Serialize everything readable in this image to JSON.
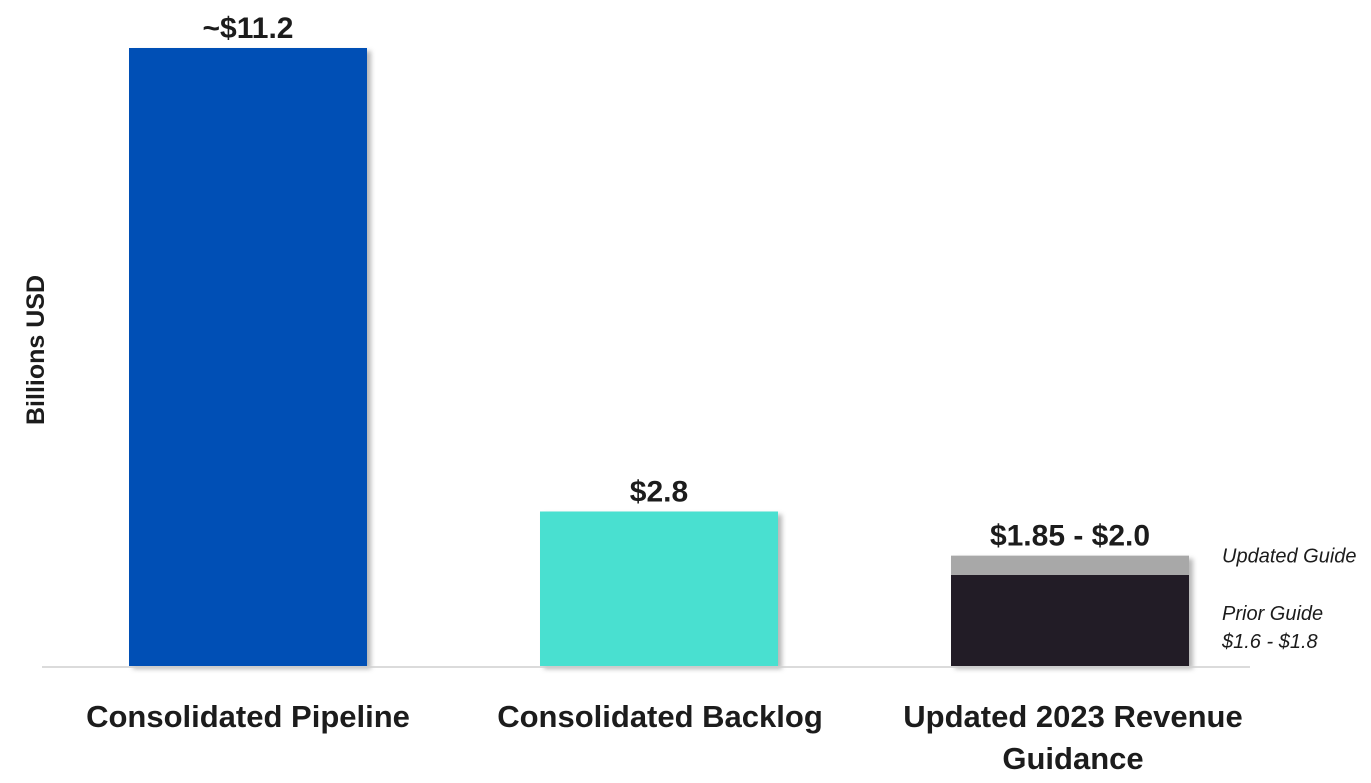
{
  "chart_data": {
    "type": "bar",
    "ylabel": "Billions USD",
    "ylim": [
      0,
      11.2
    ],
    "grid": false,
    "categories": [
      [
        "Consolidated Pipeline"
      ],
      [
        "Consolidated Backlog"
      ],
      [
        "Updated 2023 Revenue",
        "Guidance"
      ]
    ],
    "bars": [
      {
        "category_index": 0,
        "segments": [
          {
            "from": 0,
            "to": 11.2,
            "color": "#0050b5"
          }
        ],
        "label": "~$11.2"
      },
      {
        "category_index": 1,
        "segments": [
          {
            "from": 0,
            "to": 2.8,
            "color": "#48e0d0"
          }
        ],
        "label": "$2.8"
      },
      {
        "category_index": 2,
        "segments": [
          {
            "from": 0,
            "to": 1.65,
            "color": "#201f26"
          },
          {
            "from": 1.65,
            "to": 2.0,
            "color": "#a8a8a8"
          }
        ],
        "label": "$1.85 - $2.0"
      }
    ],
    "annotations": [
      {
        "lines": [
          "Updated Guide"
        ],
        "anchor": "top-segment"
      },
      {
        "lines": [
          "Prior Guide",
          "$1.6 - $1.8"
        ],
        "anchor": "bottom-segment"
      }
    ],
    "colors": {
      "pipeline": "#0050b5",
      "backlog": "#48e0d0",
      "prior_guide": "#201f26",
      "updated_guide": "#a8a8a8",
      "axis": "#cfcfcf",
      "text": "#1c1c1c"
    }
  }
}
